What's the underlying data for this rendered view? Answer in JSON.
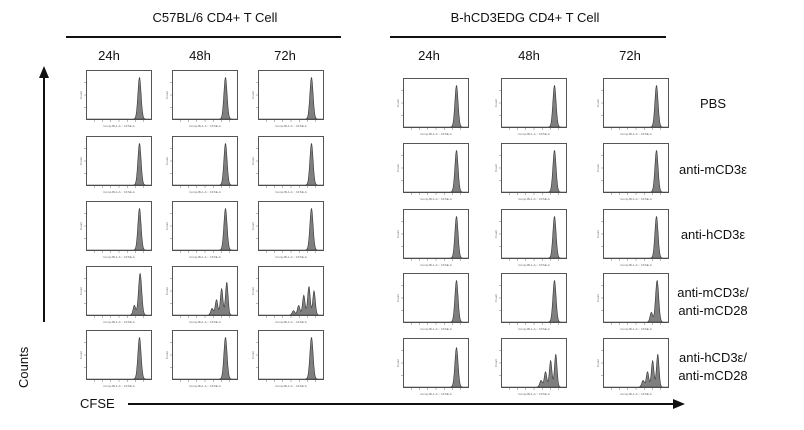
{
  "groups": [
    {
      "title": "C57BL/6 CD4+ T Cell",
      "timepoints": [
        "24h",
        "48h",
        "72h"
      ]
    },
    {
      "title": "B-hCD3EDG CD4+ T Cell",
      "timepoints": [
        "24h",
        "48h",
        "72h"
      ]
    }
  ],
  "conditions": [
    {
      "line1": "PBS",
      "line2": ""
    },
    {
      "line1": "anti-mCD3ε",
      "line2": ""
    },
    {
      "line1": "anti-hCD3ε",
      "line2": ""
    },
    {
      "line1": "anti-mCD3ε/",
      "line2": "anti-mCD28"
    },
    {
      "line1": "anti-hCD3ε/",
      "line2": "anti-mCD28"
    }
  ],
  "axes": {
    "y_label": "Counts",
    "x_label": "CFSE"
  },
  "panel_axis_text": {
    "x": "Comp-BL1-A :: CFSE-A",
    "y": "Count"
  },
  "colors": {
    "histogram_fill": "#7f7f7f",
    "histogram_stroke": "#333333",
    "frame": "#555555"
  },
  "profiles": [
    [
      "single",
      "single",
      "single",
      "single",
      "single",
      "single"
    ],
    [
      "single",
      "single",
      "single",
      "single",
      "single",
      "single"
    ],
    [
      "single",
      "single",
      "single",
      "single",
      "single",
      "single"
    ],
    [
      "single-shoulder",
      "multi",
      "multi-wide",
      "single",
      "single",
      "single-shoulder"
    ],
    [
      "single",
      "single",
      "single",
      "single-small",
      "multi",
      "multi"
    ]
  ]
}
